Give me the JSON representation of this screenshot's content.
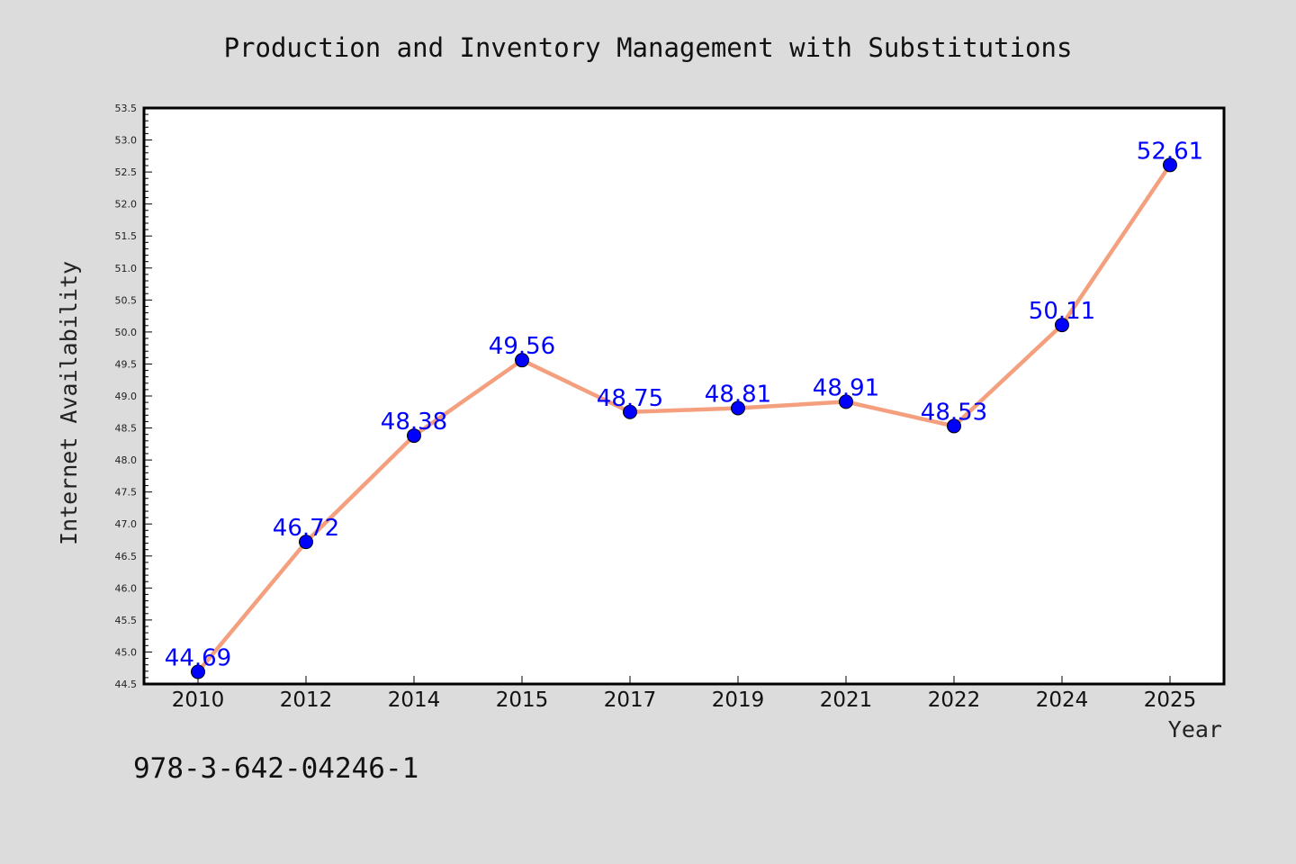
{
  "footnote": "978-3-642-04246-1",
  "chart_data": {
    "type": "line",
    "title": "Production and Inventory Management with Substitutions",
    "xlabel": "Year",
    "ylabel": "Internet Availability",
    "categories": [
      "2010",
      "2012",
      "2014",
      "2015",
      "2017",
      "2019",
      "2021",
      "2022",
      "2024",
      "2025"
    ],
    "series": [
      {
        "values": [
          44.69,
          46.72,
          48.38,
          49.56,
          48.75,
          48.81,
          48.91,
          48.53,
          50.11,
          52.61
        ],
        "data_labels": [
          "44.69",
          "46.72",
          "48.38",
          "49.56",
          "48.75",
          "48.81",
          "48.91",
          "48.53",
          "50.11",
          "52.61"
        ],
        "line_color": "#f4a07e",
        "marker_color": "#0000ff"
      }
    ],
    "ylim": [
      44.5,
      53.5
    ],
    "yticks": [
      "44.5",
      "45.0",
      "45.5",
      "46.0",
      "46.5",
      "47.0",
      "47.5",
      "48.0",
      "48.5",
      "49.0",
      "49.5",
      "50.0",
      "50.5",
      "51.0",
      "51.5",
      "52.0",
      "52.5",
      "53.0",
      "53.5"
    ],
    "grid": false,
    "legend": "none",
    "colors": {
      "background": "#dcdcdc",
      "plot_background": "#ffffff",
      "data_label": "#0000ff"
    }
  }
}
